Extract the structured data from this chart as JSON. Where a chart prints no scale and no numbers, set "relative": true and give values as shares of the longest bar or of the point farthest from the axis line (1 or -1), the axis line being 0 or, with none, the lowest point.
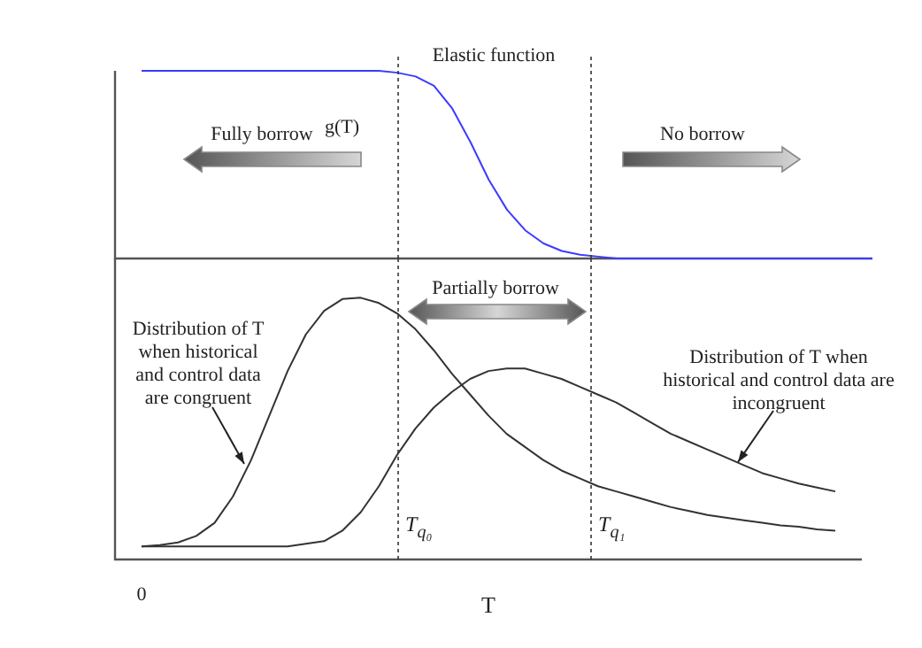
{
  "chart_data": [
    {
      "type": "line",
      "title": "Elastic function",
      "ylabel": "g(T)",
      "relative": true,
      "categories": [
        null,
        null,
        null,
        null,
        null,
        null,
        null,
        null,
        null,
        null,
        null,
        null,
        null,
        null,
        null,
        null,
        null,
        null,
        null,
        null,
        null,
        null,
        null,
        null,
        null,
        null,
        null,
        null,
        null,
        null,
        null,
        null,
        null,
        null,
        null,
        null,
        null,
        null,
        null,
        null,
        null
      ],
      "series": [
        {
          "color": "#3b3bff",
          "values": [
            1,
            1,
            1,
            1,
            1,
            1,
            1,
            1,
            1,
            1,
            1,
            1,
            1,
            1,
            0.99,
            0.97,
            0.92,
            0.8,
            0.62,
            0.42,
            0.26,
            0.15,
            0.08,
            0.04,
            0.02,
            0.01,
            0,
            0,
            0,
            0,
            0,
            0,
            0,
            0,
            0,
            0,
            0,
            0,
            0,
            0,
            0
          ]
        }
      ],
      "annotations": [
        "Fully borrow",
        "No borrow"
      ],
      "tick_labels": false,
      "marker": "none"
    },
    {
      "type": "line",
      "xlabel": "T",
      "relative": true,
      "categories": [
        null,
        null,
        null,
        null,
        null,
        null,
        null,
        null,
        null,
        null,
        null,
        null,
        null,
        null,
        null,
        null,
        null,
        null,
        null,
        null,
        null,
        null,
        null,
        null,
        null,
        null,
        null,
        null,
        null,
        null,
        null,
        null,
        null,
        null,
        null,
        null,
        null,
        null,
        null
      ],
      "series": [
        {
          "color": "#333333",
          "values": [
            0.05,
            0.055,
            0.065,
            0.09,
            0.14,
            0.24,
            0.38,
            0.55,
            0.72,
            0.86,
            0.95,
            0.995,
            1,
            0.98,
            0.94,
            0.88,
            0.8,
            0.71,
            0.63,
            0.55,
            0.48,
            0.43,
            0.38,
            0.34,
            0.31,
            0.28,
            0.26,
            0.24,
            0.22,
            0.2,
            0.185,
            0.17,
            0.16,
            0.15,
            0.14,
            0.13,
            0.125,
            0.115,
            0.11
          ]
        },
        {
          "color": "#333333",
          "values": [
            0.05,
            0.05,
            0.05,
            0.05,
            0.05,
            0.05,
            0.05,
            0.05,
            0.05,
            0.06,
            0.07,
            0.11,
            0.18,
            0.28,
            0.4,
            0.5,
            0.58,
            0.64,
            0.69,
            0.72,
            0.73,
            0.73,
            0.71,
            0.69,
            0.66,
            0.63,
            0.6,
            0.56,
            0.52,
            0.48,
            0.45,
            0.42,
            0.39,
            0.36,
            0.33,
            0.31,
            0.29,
            0.275,
            0.26
          ]
        }
      ],
      "annotations": [
        "Partially borrow",
        "Distribution of T when historical and control data are congruent",
        "Distribution of T when historical and control data are incongruent",
        "T$_{q₀}$",
        "T$_{q₁}$",
        "0"
      ],
      "tick_labels": false,
      "marker": "none"
    }
  ]
}
